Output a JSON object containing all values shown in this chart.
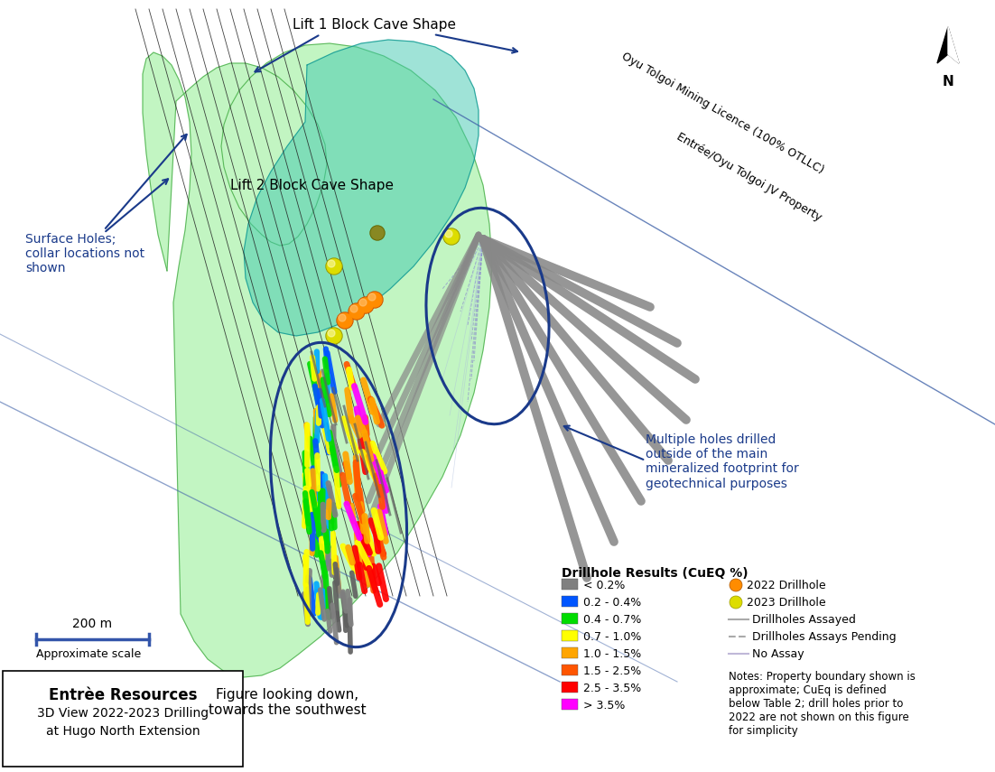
{
  "background_color": "#ffffff",
  "lift1_color": "#40c8b0",
  "lift2_color": "#90ee90",
  "lift1_alpha": 0.5,
  "lift2_alpha": 0.55,
  "lift1_label": "Lift 1 Block Cave Shape",
  "lift2_label": "Lift 2 Block Cave Shape",
  "surface_holes_text": "Surface Holes;\ncollar locations not\nshown",
  "multiple_holes_text": "Multiple holes drilled\noutside of the main\nmineralized footprint for\ngeotechnical purposes",
  "figure_text": "Figure looking down,\ntowards the southwest",
  "scale_text": "200 m",
  "approx_scale_text": "Approximate scale",
  "boundary_line1": "Oyu Tolgoi Mining Licence (100% OTLLC)",
  "boundary_line2": "Entrée/Oyu Tolgoi JV Property",
  "legend_title": "Drillhole Results (CuEQ %)",
  "legend_colors": [
    "#808080",
    "#0055ff",
    "#00dd00",
    "#ffff00",
    "#ffa500",
    "#ff5500",
    "#ff0000",
    "#ff00ff"
  ],
  "legend_labels": [
    "< 0.2%",
    "0.2 - 0.4%",
    "0.4 - 0.7%",
    "0.7 - 1.0%",
    "1.0 - 1.5%",
    "1.5 - 2.5%",
    "2.5 - 3.5%",
    "> 3.5%"
  ],
  "drillhole_2022_color": "#ff8c00",
  "drillhole_2023_color": "#dddd00",
  "company_name": "Entrèe Resources",
  "view_title": "3D View 2022-2023 Drilling\nat Hugo North Extension",
  "notes_text": "Notes: Property boundary shown is\napproximate; CuEq is defined\nbelow Table 2; drill holes prior to\n2022 are not shown on this figure\nfor simplicity"
}
